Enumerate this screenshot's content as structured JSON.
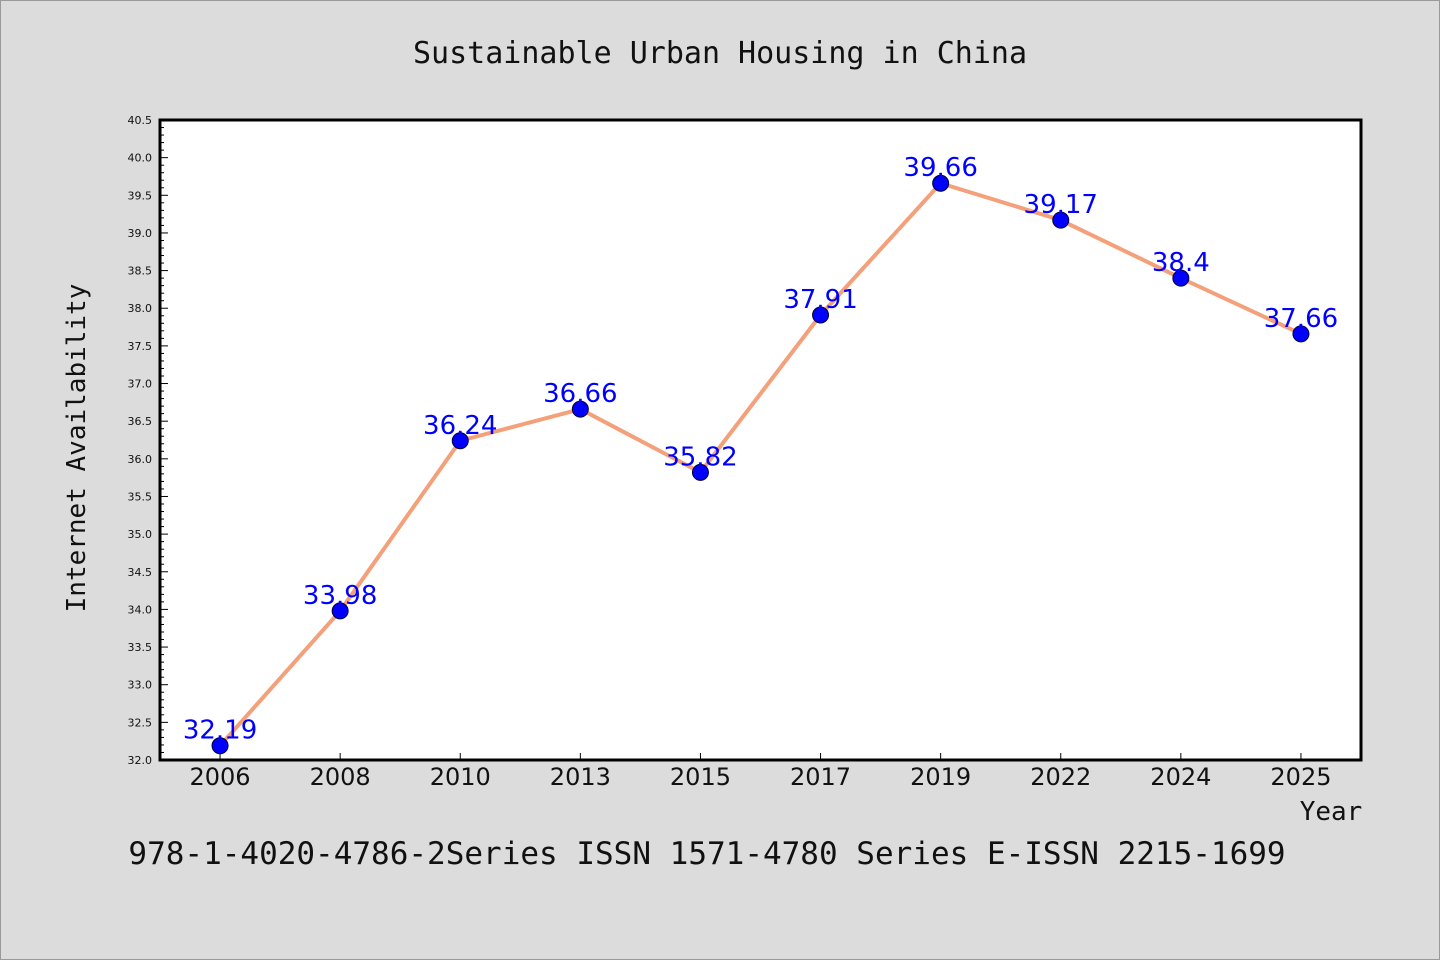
{
  "chart_data": {
    "type": "line",
    "title": "Sustainable Urban Housing in China",
    "xlabel": "Year",
    "ylabel": "Internet Availability",
    "categories": [
      "2006",
      "2008",
      "2010",
      "2013",
      "2015",
      "2017",
      "2019",
      "2022",
      "2024",
      "2025"
    ],
    "series": [
      {
        "values": [
          32.19,
          33.98,
          36.24,
          36.66,
          35.82,
          37.91,
          39.66,
          39.17,
          38.4,
          37.66
        ],
        "data_labels": [
          "32.19",
          "33.98",
          "36.24",
          "36.66",
          "35.82",
          "37.91",
          "39.66",
          "39.17",
          "38.4",
          "37.66"
        ],
        "line_color": "#f4a07a",
        "marker_color": "#0000ff",
        "label_color": "#0000ff"
      }
    ],
    "ylim": [
      32.0,
      40.5
    ],
    "yticks": [
      "32.0",
      "32.5",
      "33.0",
      "33.5",
      "34.0",
      "34.5",
      "35.0",
      "35.5",
      "36.0",
      "36.5",
      "37.0",
      "37.5",
      "38.0",
      "38.5",
      "39.0",
      "39.5",
      "40.0",
      "40.5"
    ],
    "grid": false,
    "legend": "none",
    "plot_background": "#ffffff",
    "page_background": "#dcdcdc"
  },
  "footer_text": "978-1-4020-4786-2Series ISSN 1571-4780 Series E-ISSN 2215-1699"
}
